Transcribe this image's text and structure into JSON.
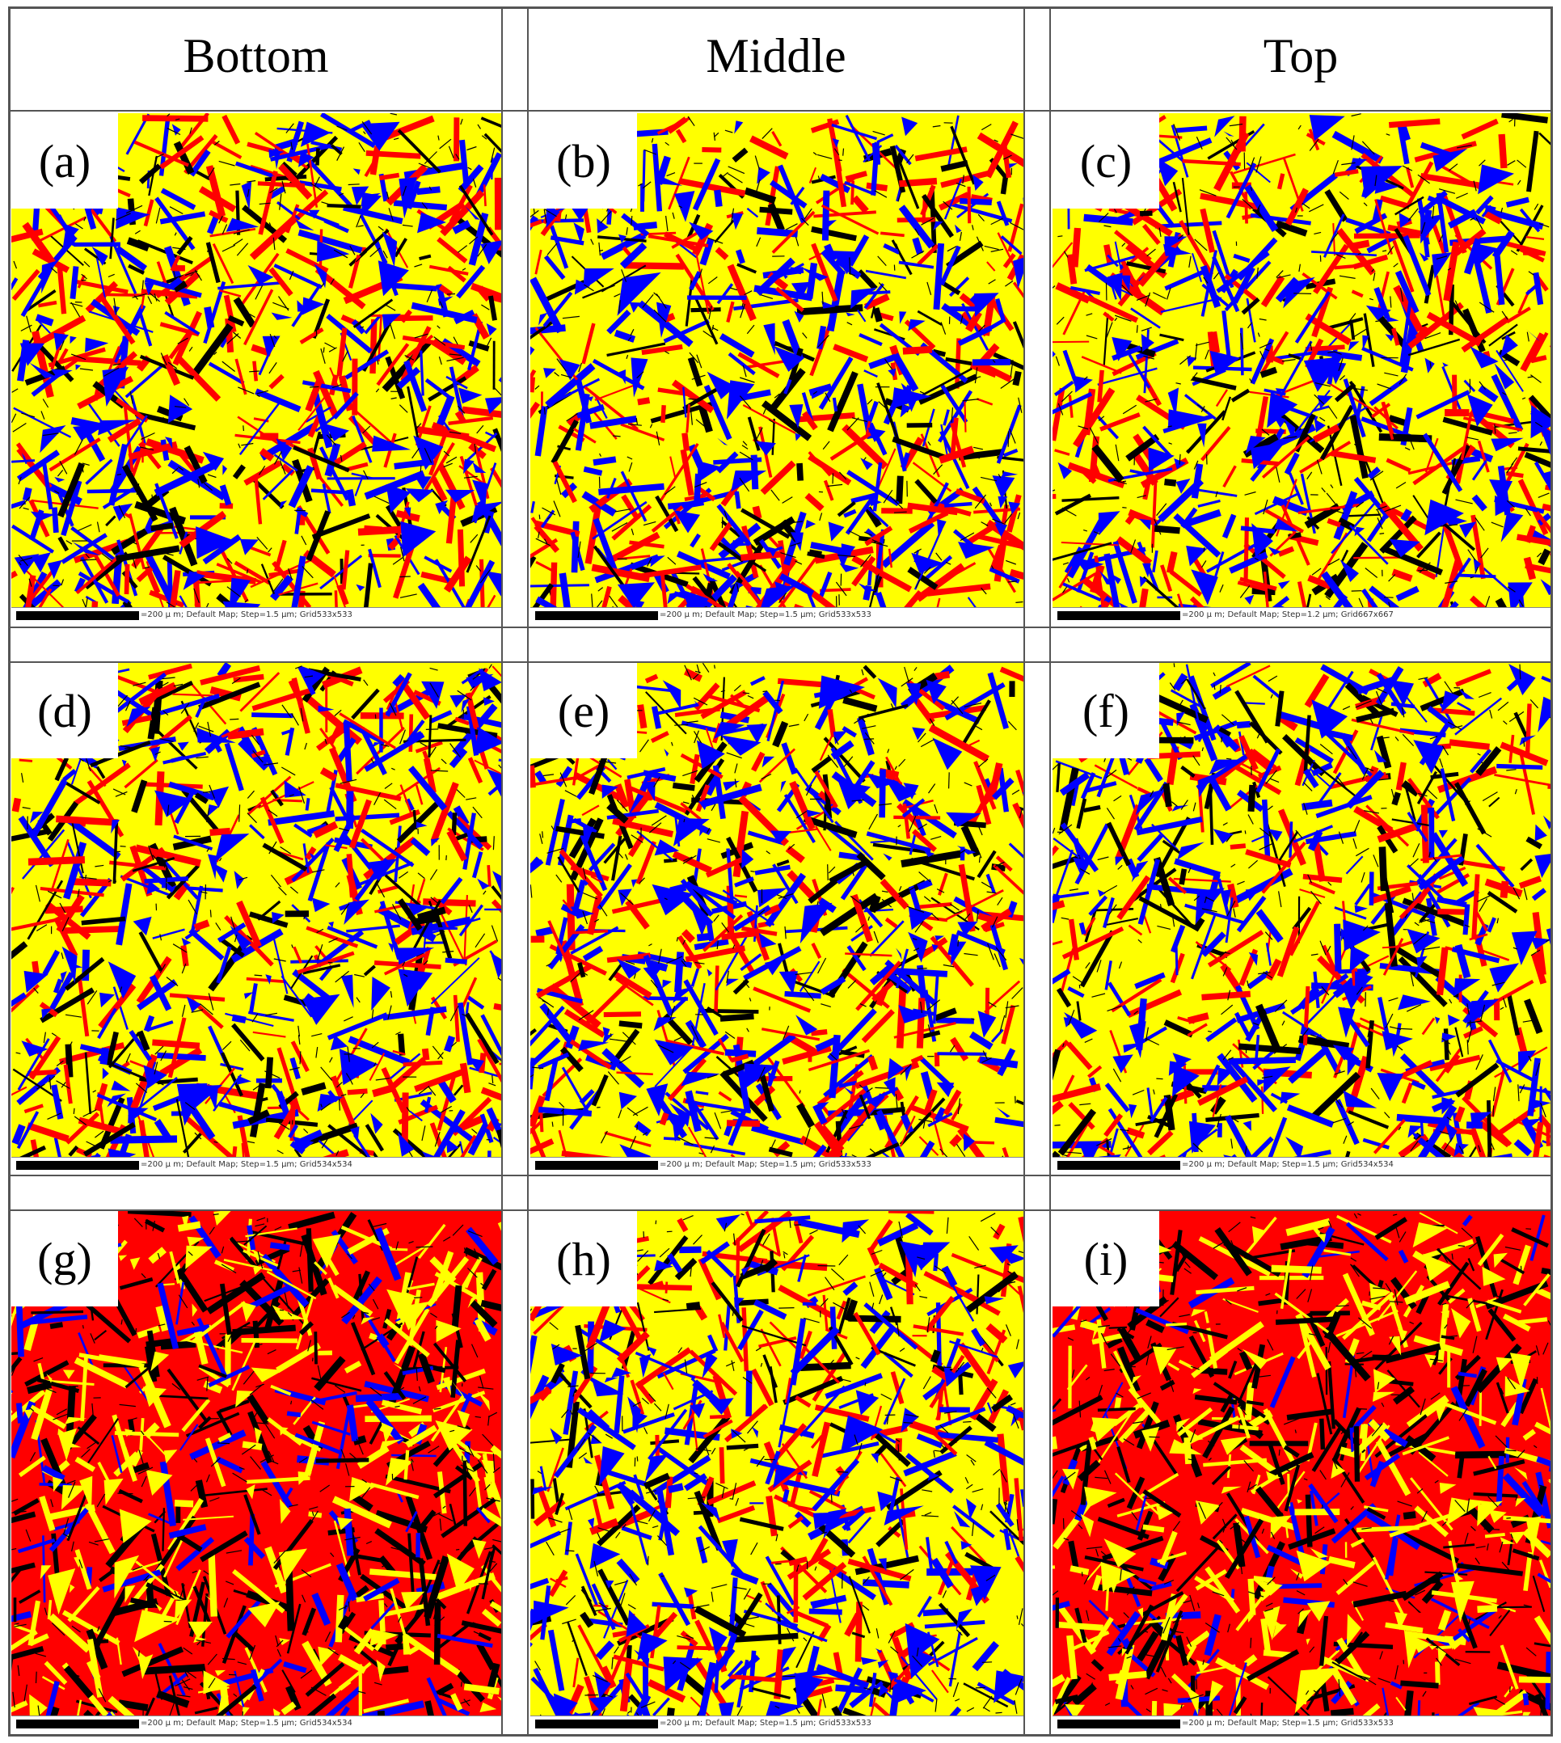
{
  "headers": [
    "Bottom",
    "Middle",
    "Top"
  ],
  "colors": {
    "yellow": "#ffff00",
    "red": "#ff0000",
    "blue": "#0000ff",
    "boundary": "#000000"
  },
  "panels": [
    {
      "label": "(a)",
      "scale": "=200 μ m; Default Map; Step=1.5 μm; Grid533x533",
      "dominant": "yellow"
    },
    {
      "label": "(b)",
      "scale": "=200 μ m; Default Map; Step=1.5 μm; Grid533x533",
      "dominant": "yellow"
    },
    {
      "label": "(c)",
      "scale": "=200 μ m; Default Map; Step=1.2 μm; Grid667x667",
      "dominant": "yellow"
    },
    {
      "label": "(d)",
      "scale": "=200 μ m; Default Map; Step=1.5 μm; Grid534x534",
      "dominant": "yellow"
    },
    {
      "label": "(e)",
      "scale": "=200 μ m; Default Map; Step=1.5 μm; Grid533x533",
      "dominant": "yellow"
    },
    {
      "label": "(f)",
      "scale": "=200 μ m; Default Map; Step=1.5 μm; Grid534x534",
      "dominant": "yellow"
    },
    {
      "label": "(g)",
      "scale": "=200 μ m; Default Map; Step=1.5 μm; Grid534x534",
      "dominant": "red"
    },
    {
      "label": "(h)",
      "scale": "=200 μ m; Default Map; Step=1.5 μm; Grid533x533",
      "dominant": "yellow"
    },
    {
      "label": "(i)",
      "scale": "=200 μ m; Default Map; Step=1.5 μm; Grid533x533",
      "dominant": "red"
    }
  ]
}
